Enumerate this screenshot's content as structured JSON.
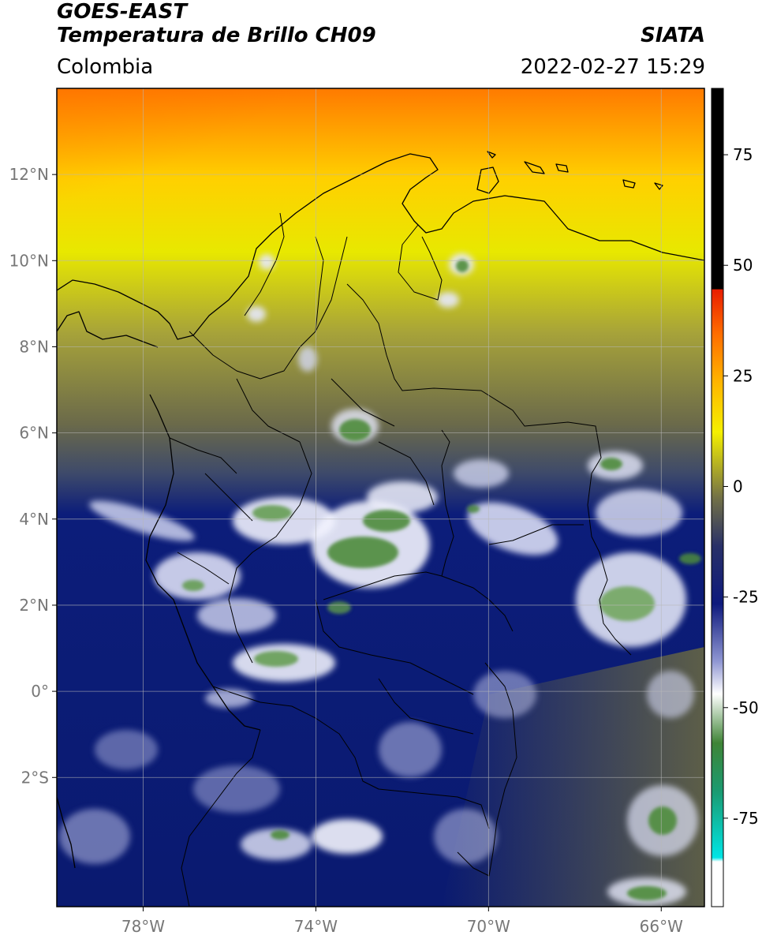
{
  "header": {
    "title_line1": "GOES-EAST",
    "title_line2": "Temperatura de Brillo CH09",
    "organization": "SIATA",
    "region": "Colombia",
    "datetime": "2022-02-27 15:29"
  },
  "map": {
    "lon_range": [
      -80,
      -65
    ],
    "lat_range": [
      -5,
      14
    ],
    "lon_ticks": [
      {
        "value": -78,
        "label": "78°W"
      },
      {
        "value": -74,
        "label": "74°W"
      },
      {
        "value": -70,
        "label": "70°W"
      },
      {
        "value": -66,
        "label": "66°W"
      }
    ],
    "lat_ticks": [
      {
        "value": 12,
        "label": "12°N"
      },
      {
        "value": 10,
        "label": "10°N"
      },
      {
        "value": 8,
        "label": "8°N"
      },
      {
        "value": 6,
        "label": "6°N"
      },
      {
        "value": 4,
        "label": "4°N"
      },
      {
        "value": 2,
        "label": "2°N"
      },
      {
        "value": 0,
        "label": "0°"
      },
      {
        "value": -2,
        "label": "2°S"
      }
    ],
    "grid": true
  },
  "colorbar": {
    "range": [
      -95,
      90
    ],
    "ticks": [
      {
        "value": 75,
        "label": "75"
      },
      {
        "value": 50,
        "label": "50"
      },
      {
        "value": 25,
        "label": "25"
      },
      {
        "value": 0,
        "label": "0"
      },
      {
        "value": -25,
        "label": "-25"
      },
      {
        "value": -50,
        "label": "-50"
      },
      {
        "value": -75,
        "label": "-75"
      }
    ]
  },
  "colors": {
    "cold_top": "#0b1a6e",
    "mid_olive": "#6e6e3a",
    "warm_yellow": "#f2f000",
    "warm_orange": "#ff8c00",
    "cloud_white": "#ffffff",
    "cloud_green": "#4f8a3c"
  }
}
